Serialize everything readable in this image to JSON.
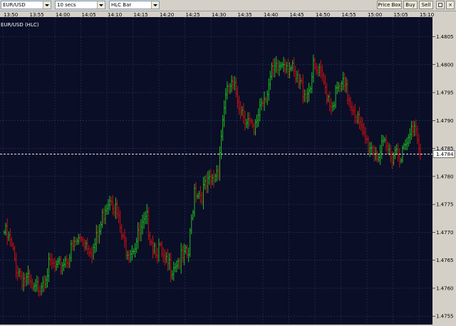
{
  "toolbar": {
    "symbol": "EUR/USD",
    "interval": "10 secs",
    "chart_type": "HLC Bar",
    "price_box_label": "Price Box",
    "buy_label": "Buy",
    "sell_label": "Sell"
  },
  "chart_title": "EUR/USD (HLC)",
  "current_price_label": "1.4784",
  "colors": {
    "background": "#0a0e27",
    "grid": "#2a3a66",
    "up": "#20c020",
    "down": "#d01010",
    "current_line": "#ffffff",
    "axis_bg": "#d4d0c8"
  },
  "chart_data": {
    "type": "bar",
    "subtype": "HLC",
    "x_ticks": [
      "13:50",
      "13:55",
      "14:00",
      "14:05",
      "14:10",
      "14:15",
      "14:20",
      "14:25",
      "14:30",
      "14:35",
      "14:40",
      "14:45",
      "14:50",
      "14:55",
      "15:00",
      "15:05",
      "15:10"
    ],
    "y_ticks": [
      "1.4805",
      "1.4800",
      "1.4795",
      "1.4790",
      "1.4785",
      "1.4780",
      "1.4775",
      "1.4770",
      "1.4765",
      "1.4760",
      "1.4755"
    ],
    "ylim": [
      1.47535,
      1.48085
    ],
    "current_price": 1.4784,
    "anchors": [
      [
        0,
        1.477
      ],
      [
        4,
        1.4768
      ],
      [
        8,
        1.4764
      ],
      [
        12,
        1.4762
      ],
      [
        16,
        1.4761
      ],
      [
        20,
        1.4759
      ],
      [
        24,
        1.4761
      ],
      [
        28,
        1.4763
      ],
      [
        32,
        1.4764
      ],
      [
        36,
        1.4763
      ],
      [
        40,
        1.4765
      ],
      [
        44,
        1.4766
      ],
      [
        48,
        1.4768
      ],
      [
        52,
        1.4769
      ],
      [
        56,
        1.4768
      ],
      [
        60,
        1.4767
      ],
      [
        64,
        1.477
      ],
      [
        68,
        1.4775
      ],
      [
        72,
        1.4777
      ],
      [
        76,
        1.4773
      ],
      [
        80,
        1.4768
      ],
      [
        84,
        1.4767
      ],
      [
        88,
        1.4768
      ],
      [
        92,
        1.477
      ],
      [
        96,
        1.4772
      ],
      [
        100,
        1.4768
      ],
      [
        104,
        1.4767
      ],
      [
        108,
        1.4764
      ],
      [
        112,
        1.4764
      ],
      [
        116,
        1.4765
      ],
      [
        120,
        1.4765
      ],
      [
        124,
        1.4766
      ],
      [
        128,
        1.4778
      ],
      [
        132,
        1.4777
      ],
      [
        136,
        1.4778
      ],
      [
        140,
        1.4779
      ],
      [
        144,
        1.4782
      ],
      [
        148,
        1.4793
      ],
      [
        152,
        1.4796
      ],
      [
        156,
        1.4795
      ],
      [
        160,
        1.4792
      ],
      [
        164,
        1.479
      ],
      [
        168,
        1.4787
      ],
      [
        172,
        1.4793
      ],
      [
        176,
        1.4795
      ],
      [
        180,
        1.4798
      ],
      [
        184,
        1.4799
      ],
      [
        188,
        1.4801
      ],
      [
        192,
        1.48
      ],
      [
        196,
        1.4797
      ],
      [
        200,
        1.4796
      ],
      [
        204,
        1.4795
      ],
      [
        208,
        1.4799
      ],
      [
        212,
        1.4798
      ],
      [
        216,
        1.4796
      ],
      [
        220,
        1.4793
      ],
      [
        224,
        1.4795
      ],
      [
        228,
        1.4796
      ],
      [
        232,
        1.4794
      ],
      [
        236,
        1.4792
      ],
      [
        240,
        1.4788
      ],
      [
        244,
        1.4786
      ],
      [
        248,
        1.4785
      ],
      [
        252,
        1.4784
      ],
      [
        256,
        1.4785
      ],
      [
        260,
        1.4784
      ],
      [
        264,
        1.4785
      ],
      [
        268,
        1.4784
      ],
      [
        272,
        1.4786
      ],
      [
        276,
        1.479
      ],
      [
        280,
        1.4785
      ]
    ],
    "bar_count": 281
  }
}
